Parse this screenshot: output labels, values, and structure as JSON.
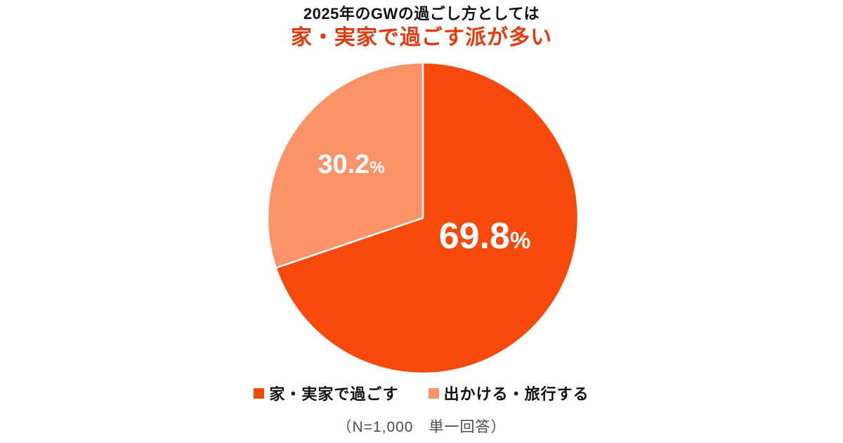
{
  "title": {
    "line1": "2025年のGWの過ごし方としては",
    "line2": "家・実家で過ごす派が多い",
    "accent_color": "#e23a0e"
  },
  "chart_data": {
    "type": "pie",
    "title": "2025年のGWの過ごし方としては 家・実家で過ごす派が多い",
    "unit": "%",
    "start_angle_deg": 0,
    "direction": "clockwise",
    "legend_position": "bottom",
    "divider_color": "#ffffff",
    "slices": [
      {
        "label": "家・実家で過ごす",
        "value": 69.8,
        "color": "#f6490b"
      },
      {
        "label": "出かける・旅行する",
        "value": 30.2,
        "color": "#fa9468"
      }
    ]
  },
  "footnote": "（N=1,000　単一回答）"
}
